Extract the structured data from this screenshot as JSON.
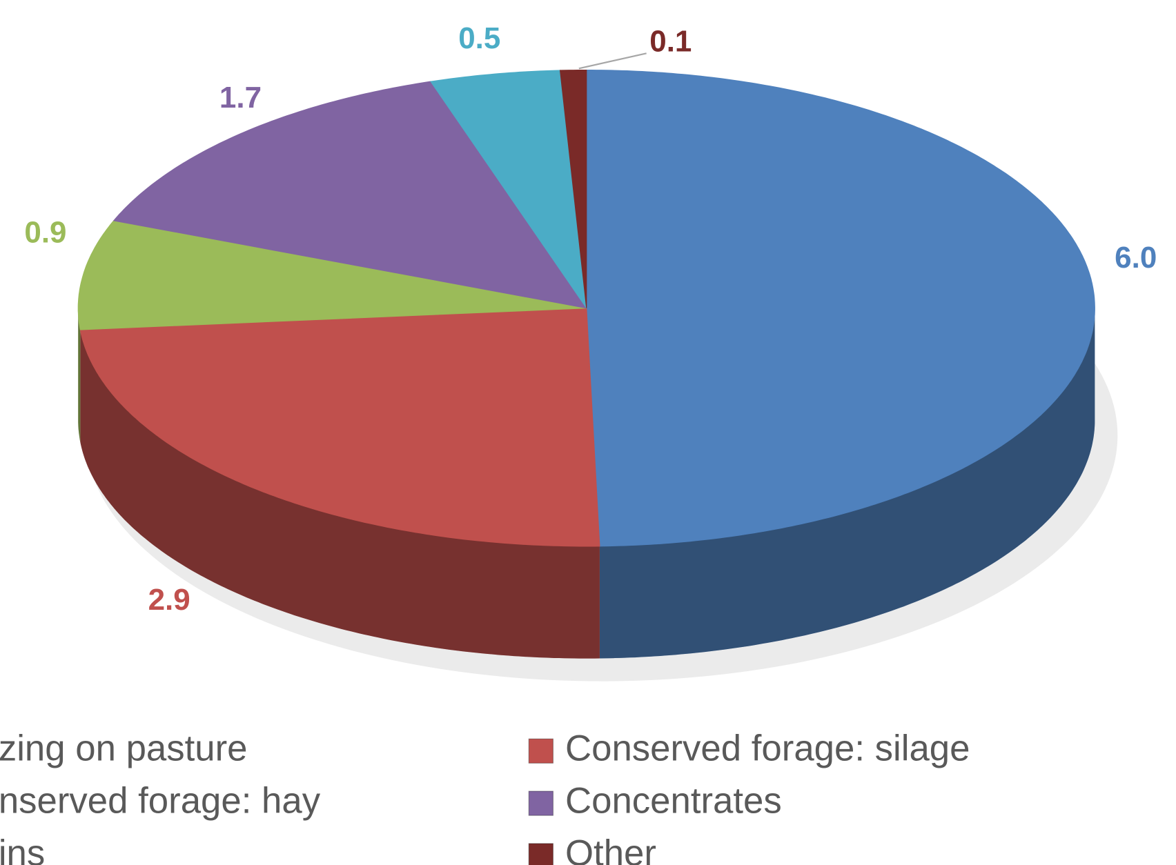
{
  "chart_data": {
    "type": "pie",
    "categories": [
      "zing on pasture",
      "Conserved forage: silage",
      "nserved forage: hay",
      "Concentrates",
      "ins",
      "Other"
    ],
    "values": [
      6,
      2.9,
      0.9,
      1.7,
      0.5,
      0.1
    ],
    "value_labels": [
      "6.0",
      "2.9",
      "0.9",
      "1.7",
      "0.5",
      "0.1"
    ],
    "colors": [
      "#4f81bd",
      "#c0504d",
      "#9bbb59",
      "#8064a2",
      "#4bacc6",
      "#7a2a28"
    ],
    "legend": "bottom"
  }
}
